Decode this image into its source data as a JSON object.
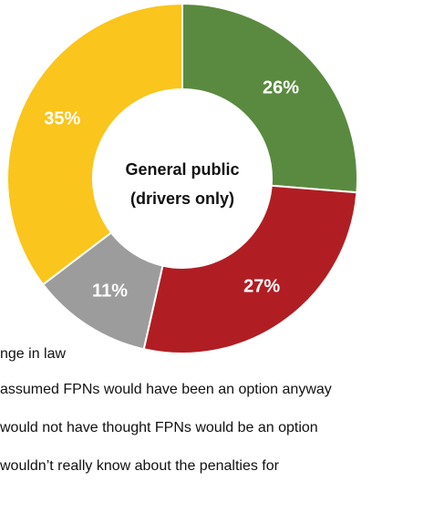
{
  "chart_data": {
    "type": "pie",
    "center_label_lines": [
      "General public",
      "(drivers only)"
    ],
    "slices": [
      {
        "label": "26%",
        "value": 26,
        "color": "#5a8a3f",
        "legend": ""
      },
      {
        "label": "27%",
        "value": 27,
        "color": "#b01e24",
        "legend": ""
      },
      {
        "label": "11%",
        "value": 11,
        "color": "#9c9c9c",
        "legend": ""
      },
      {
        "label": "35%",
        "value": 35,
        "color": "#fac51c",
        "legend": ""
      }
    ],
    "legend": [
      "nge in law",
      "assumed FPNs would have been an option anyway",
      "would not have thought FPNs would be an option",
      "wouldn’t really know about the penalties for"
    ]
  }
}
